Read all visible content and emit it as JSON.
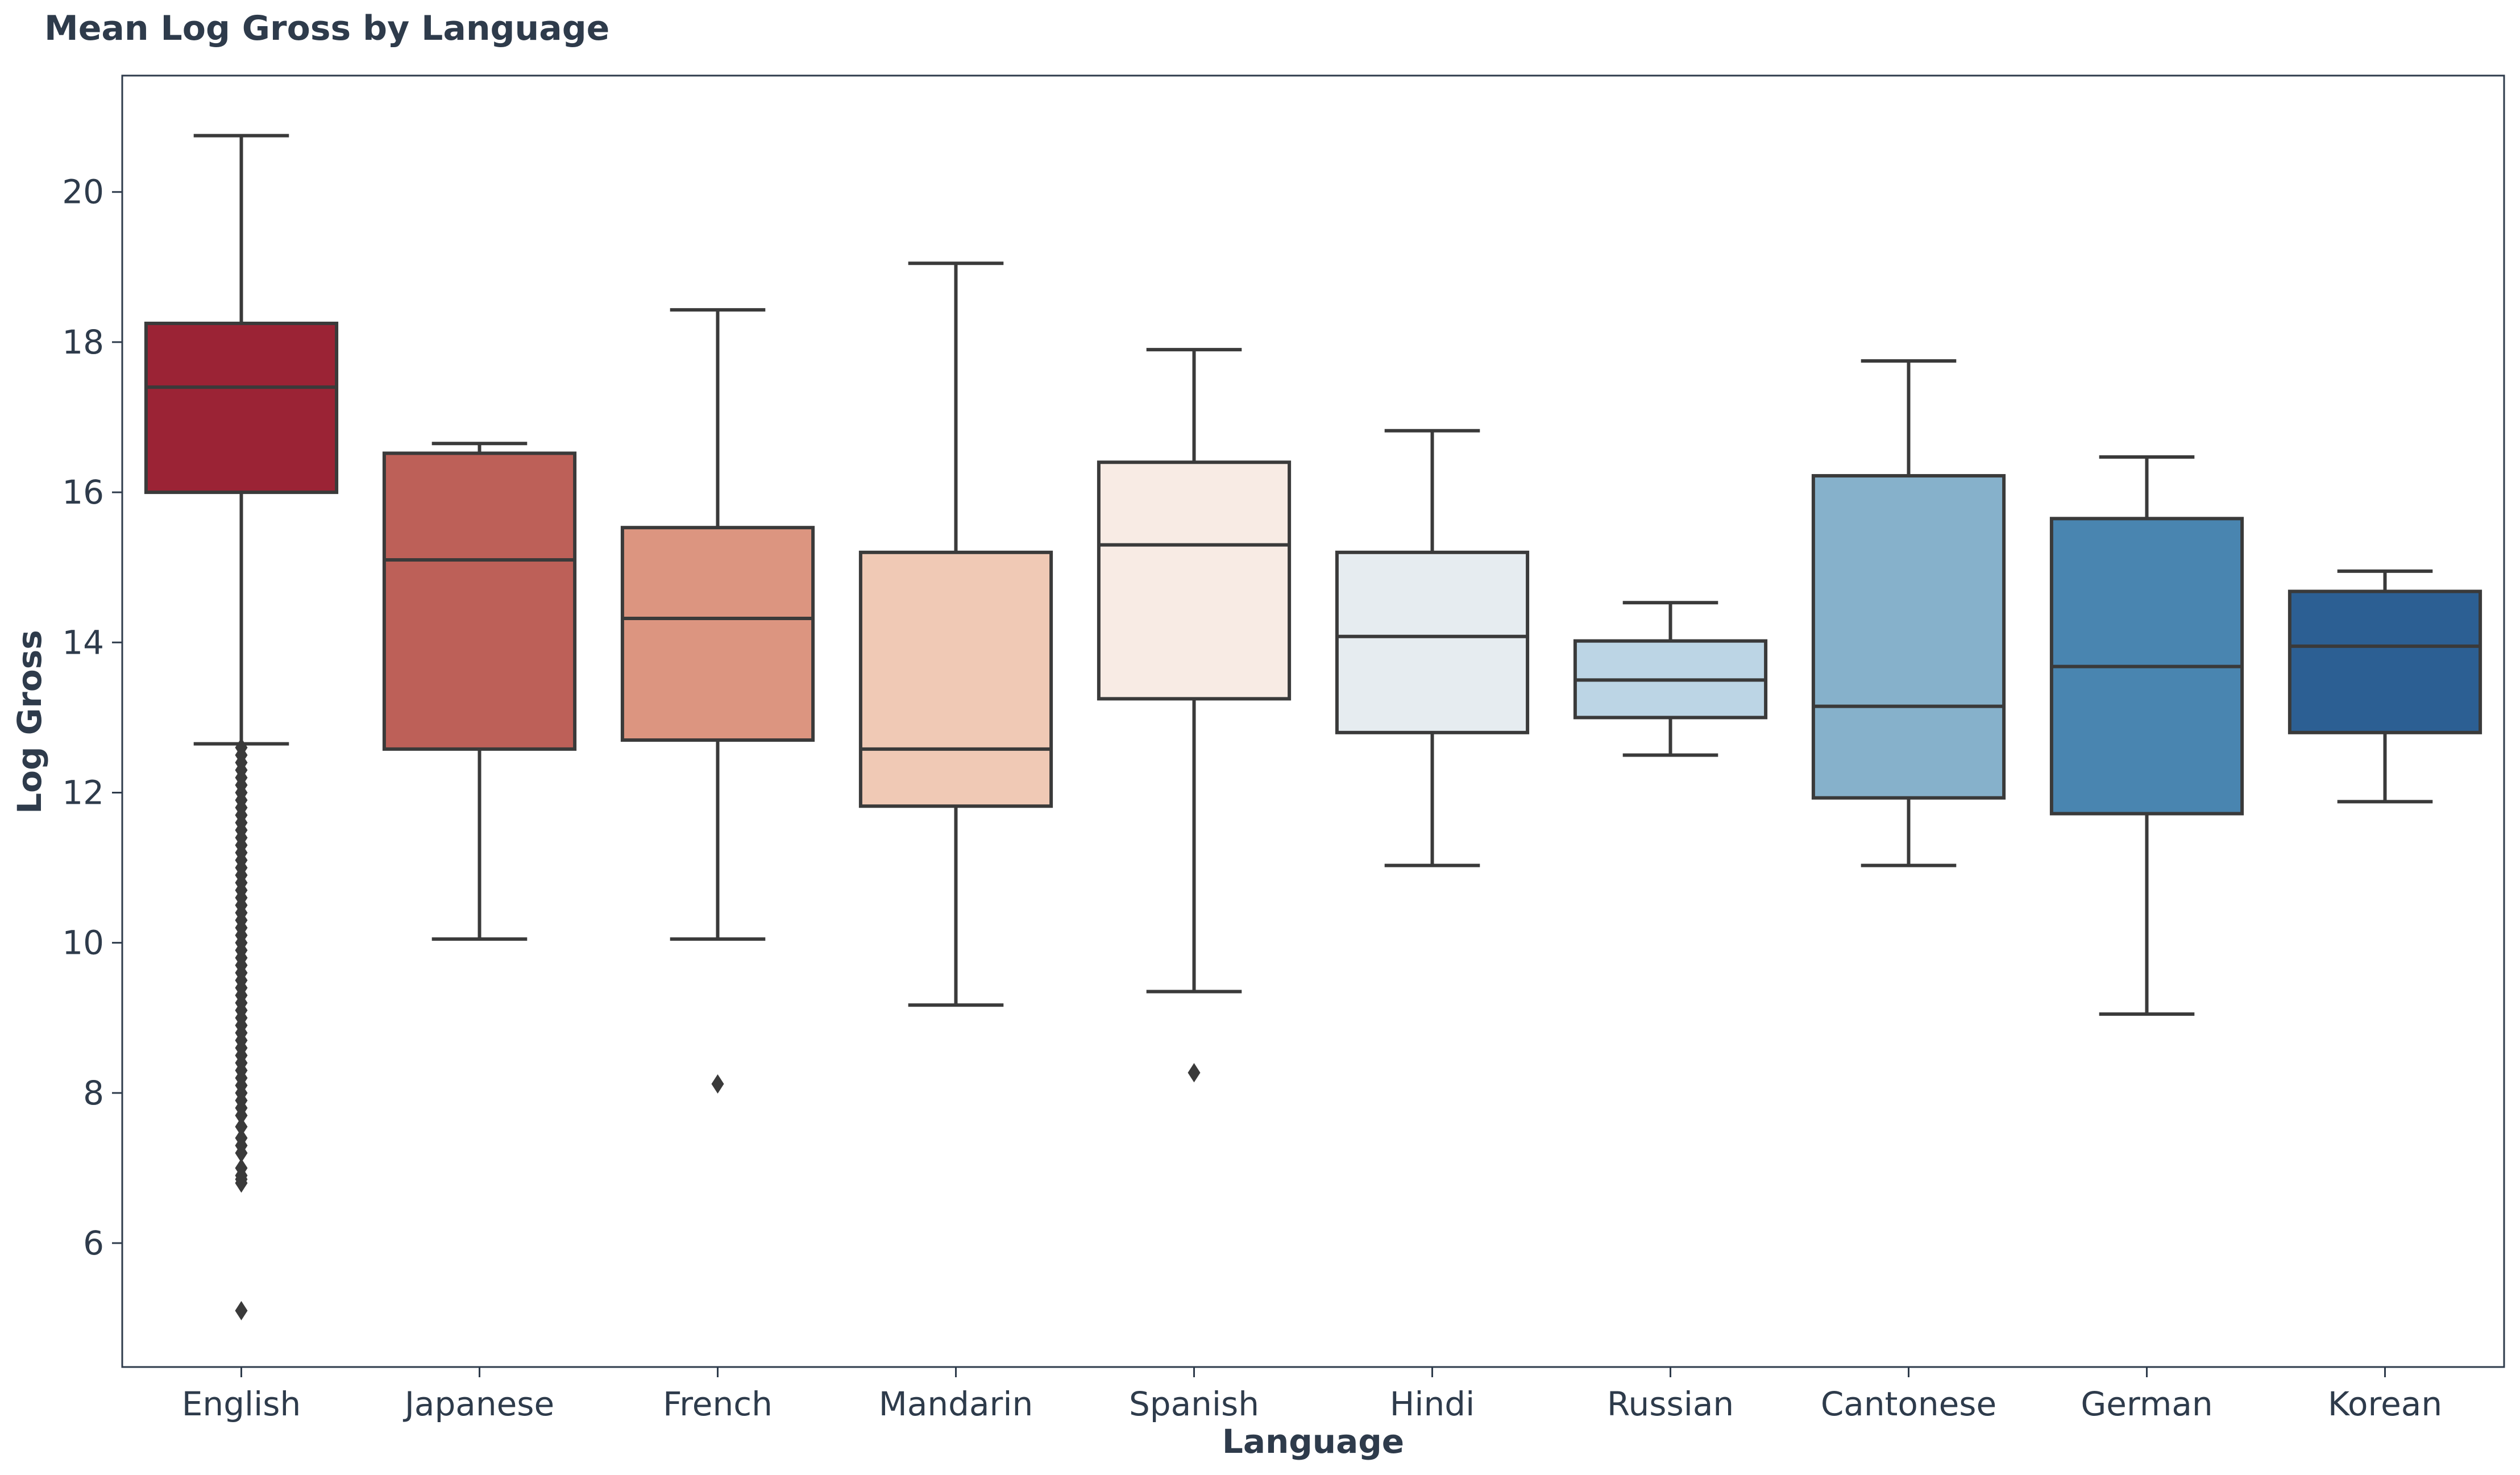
{
  "chart_data": {
    "type": "box",
    "title": "Mean Log Gross by Language",
    "xlabel": "Language",
    "ylabel": "Log Gross",
    "ylim": [
      4.35,
      21.55
    ],
    "yticks": [
      6,
      8,
      10,
      12,
      14,
      16,
      18,
      20
    ],
    "grid": false,
    "categories": [
      "English",
      "Japanese",
      "French",
      "Mandarin",
      "Spanish",
      "Hindi",
      "Russian",
      "Cantonese",
      "German",
      "Korean"
    ],
    "colors": [
      "#9b2335",
      "#bd6058",
      "#dc9580",
      "#f0c9b5",
      "#f8ebe4",
      "#e6ecf0",
      "#bcd5e5",
      "#86b1cb",
      "#4985b0",
      "#2c5f93"
    ],
    "series": [
      {
        "category": "English",
        "whisker_low": 12.65,
        "q1": 16.0,
        "median": 17.4,
        "q3": 18.25,
        "whisker_high": 20.75,
        "outliers": [
          12.6,
          12.5,
          12.4,
          12.3,
          12.2,
          12.1,
          12.0,
          11.9,
          11.8,
          11.7,
          11.6,
          11.5,
          11.4,
          11.3,
          11.2,
          11.1,
          11.0,
          10.9,
          10.8,
          10.7,
          10.6,
          10.5,
          10.4,
          10.3,
          10.2,
          10.1,
          10.0,
          9.9,
          9.8,
          9.7,
          9.6,
          9.5,
          9.4,
          9.3,
          9.2,
          9.1,
          9.0,
          8.9,
          8.8,
          8.7,
          8.6,
          8.5,
          8.4,
          8.3,
          8.2,
          8.1,
          8.0,
          7.9,
          7.8,
          7.7,
          7.55,
          7.4,
          7.3,
          7.2,
          7.0,
          6.9,
          6.85,
          6.8,
          5.1
        ]
      },
      {
        "category": "Japanese",
        "whisker_low": 10.05,
        "q1": 12.58,
        "median": 15.1,
        "q3": 16.52,
        "whisker_high": 16.65,
        "outliers": []
      },
      {
        "category": "French",
        "whisker_low": 10.05,
        "q1": 12.7,
        "median": 14.32,
        "q3": 15.53,
        "whisker_high": 18.43,
        "outliers": [
          8.12
        ]
      },
      {
        "category": "Mandarin",
        "whisker_low": 9.17,
        "q1": 11.82,
        "median": 12.58,
        "q3": 15.2,
        "whisker_high": 19.05,
        "outliers": []
      },
      {
        "category": "Spanish",
        "whisker_low": 9.35,
        "q1": 13.25,
        "median": 15.3,
        "q3": 16.4,
        "whisker_high": 17.9,
        "outliers": [
          8.27
        ]
      },
      {
        "category": "Hindi",
        "whisker_low": 11.03,
        "q1": 12.8,
        "median": 14.08,
        "q3": 15.2,
        "whisker_high": 16.82,
        "outliers": []
      },
      {
        "category": "Russian",
        "whisker_low": 12.5,
        "q1": 13.0,
        "median": 13.5,
        "q3": 14.02,
        "whisker_high": 14.53,
        "outliers": []
      },
      {
        "category": "Cantonese",
        "whisker_low": 11.03,
        "q1": 11.93,
        "median": 13.15,
        "q3": 16.22,
        "whisker_high": 17.75,
        "outliers": []
      },
      {
        "category": "German",
        "whisker_low": 9.05,
        "q1": 11.72,
        "median": 13.68,
        "q3": 15.65,
        "whisker_high": 16.47,
        "outliers": []
      },
      {
        "category": "Korean",
        "whisker_low": 11.88,
        "q1": 12.8,
        "median": 13.95,
        "q3": 14.68,
        "whisker_high": 14.95,
        "outliers": []
      }
    ]
  }
}
